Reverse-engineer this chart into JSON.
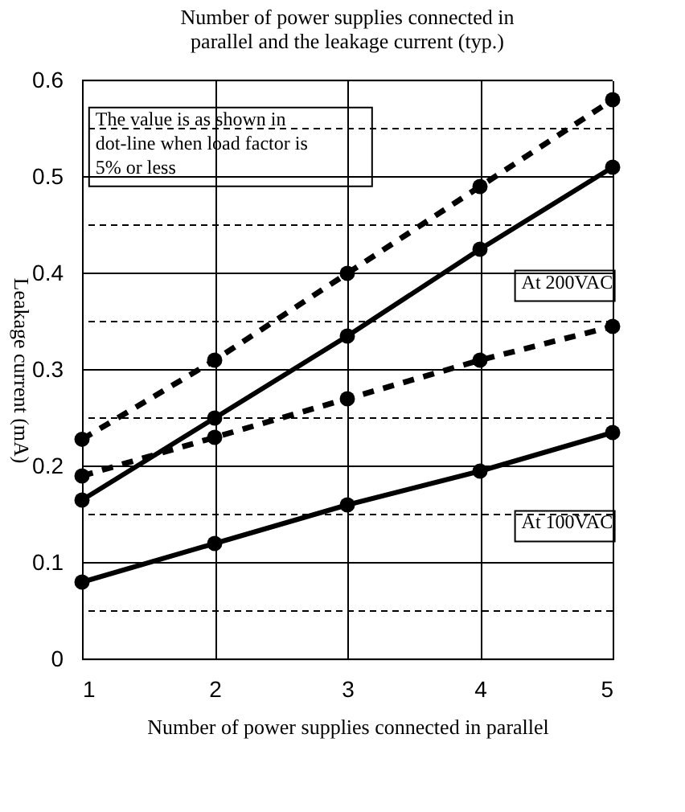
{
  "chart_data": {
    "type": "line",
    "title": "Number of power supplies connected in parallel and the leakage current (typ.)",
    "xlabel": "Number of power supplies connected in parallel",
    "ylabel": "Leakage current (mA)",
    "x": [
      1,
      2,
      3,
      4,
      5
    ],
    "series": [
      {
        "color": "#000000",
        "line_style": "dashed",
        "values": [
          0.228,
          0.31,
          0.4,
          0.49,
          0.58
        ]
      },
      {
        "color": "#000000",
        "line_style": "solid",
        "values": [
          0.165,
          0.25,
          0.335,
          0.425,
          0.51
        ]
      },
      {
        "color": "#000000",
        "line_style": "dashed",
        "values": [
          0.19,
          0.23,
          0.27,
          0.31,
          0.345
        ]
      },
      {
        "color": "#000000",
        "line_style": "solid",
        "values": [
          0.08,
          0.12,
          0.16,
          0.195,
          0.235
        ]
      }
    ],
    "xlim": [
      1,
      5
    ],
    "xticks": [
      1,
      2,
      3,
      4,
      5
    ],
    "ylim": [
      0,
      0.6
    ],
    "yticks": [
      0,
      {
        "value": 0.05,
        "label": null
      },
      0.1,
      {
        "value": 0.15,
        "label": null
      },
      0.2,
      {
        "value": 0.25,
        "label": null
      },
      0.3,
      {
        "value": 0.35,
        "label": null
      },
      0.4,
      {
        "value": 0.45,
        "label": null
      },
      0.5,
      {
        "value": 0.55,
        "label": null
      },
      0.6
    ],
    "grid": true,
    "marker": "circle",
    "legend": false,
    "annotations": [
      "The value is as shown in dot-line when load factor is 5% or less",
      "At 200VAC",
      "At 100VAC"
    ]
  }
}
